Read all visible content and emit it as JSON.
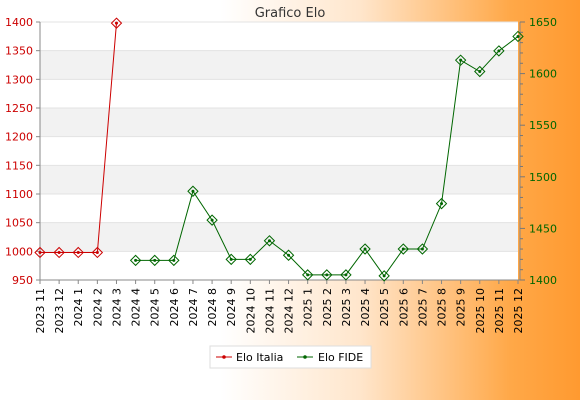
{
  "chart_data": {
    "type": "line",
    "title": "Grafico Elo",
    "categories": [
      "2023 11",
      "2023 12",
      "2024 1",
      "2024 2",
      "2024 3",
      "2024 4",
      "2024 5",
      "2024 6",
      "2024 7",
      "2024 8",
      "2024 9",
      "2024 10",
      "2024 11",
      "2024 12",
      "2025 1",
      "2025 2",
      "2025 3",
      "2025 4",
      "2025 5",
      "2025 6",
      "2025 7",
      "2025 8",
      "2025 9",
      "2025 10",
      "2025 11",
      "2025 12"
    ],
    "series": [
      {
        "name": "Elo Italia",
        "axis": "left",
        "color": "#cc0000",
        "values": [
          998,
          998,
          998,
          998,
          1398,
          null,
          null,
          null,
          null,
          null,
          null,
          null,
          null,
          null,
          null,
          null,
          null,
          null,
          null,
          null,
          null,
          null,
          null,
          null,
          null,
          null
        ]
      },
      {
        "name": "Elo FIDE",
        "axis": "right",
        "color": "#006600",
        "values": [
          null,
          null,
          null,
          null,
          null,
          1419,
          1419,
          1419,
          1486,
          1458,
          1420,
          1420,
          1438,
          1424,
          1405,
          1405,
          1405,
          1430,
          1404,
          1430,
          1430,
          1474,
          1613,
          1602,
          1622,
          1636
        ]
      }
    ],
    "y_left": {
      "min": 950,
      "max": 1400,
      "ticks": [
        950,
        1000,
        1050,
        1100,
        1150,
        1200,
        1250,
        1300,
        1350,
        1400
      ],
      "color": "#cc0000"
    },
    "y_right": {
      "min": 1400,
      "max": 1650,
      "ticks": [
        1400,
        1450,
        1500,
        1550,
        1600,
        1650
      ],
      "color": "#006600"
    },
    "grid": true,
    "legend_position": "bottom"
  }
}
